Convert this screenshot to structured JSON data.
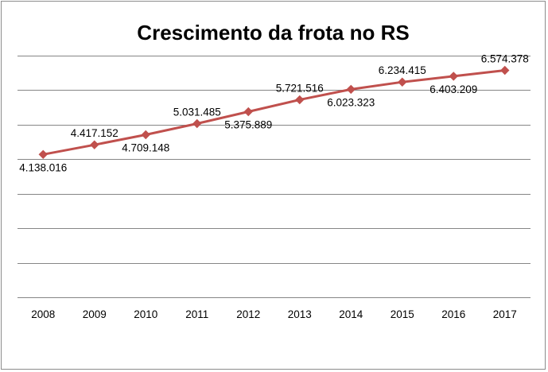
{
  "chart_data": {
    "type": "line",
    "title": "Crescimento da frota no RS",
    "xlabel": "",
    "ylabel": "",
    "categories": [
      "2008",
      "2009",
      "2010",
      "2011",
      "2012",
      "2013",
      "2014",
      "2015",
      "2016",
      "2017"
    ],
    "series": [
      {
        "values": [
          4138016,
          4417152,
          4709148,
          5031485,
          5375889,
          5721516,
          6023323,
          6234415,
          6403209,
          6574378
        ],
        "data_labels": [
          "4.138.016",
          "4.417.152",
          "4.709.148",
          "5.031.485",
          "5.375.889",
          "5.721.516",
          "6.023.323",
          "6.234.415",
          "6.403.209",
          "6.574.378"
        ],
        "color": "#c0504d",
        "marker": "diamond"
      }
    ],
    "ylim": [
      0,
      7000000
    ],
    "y_axis_visible": false,
    "grid": true,
    "gridline_color": "#868686",
    "legend": "none"
  }
}
